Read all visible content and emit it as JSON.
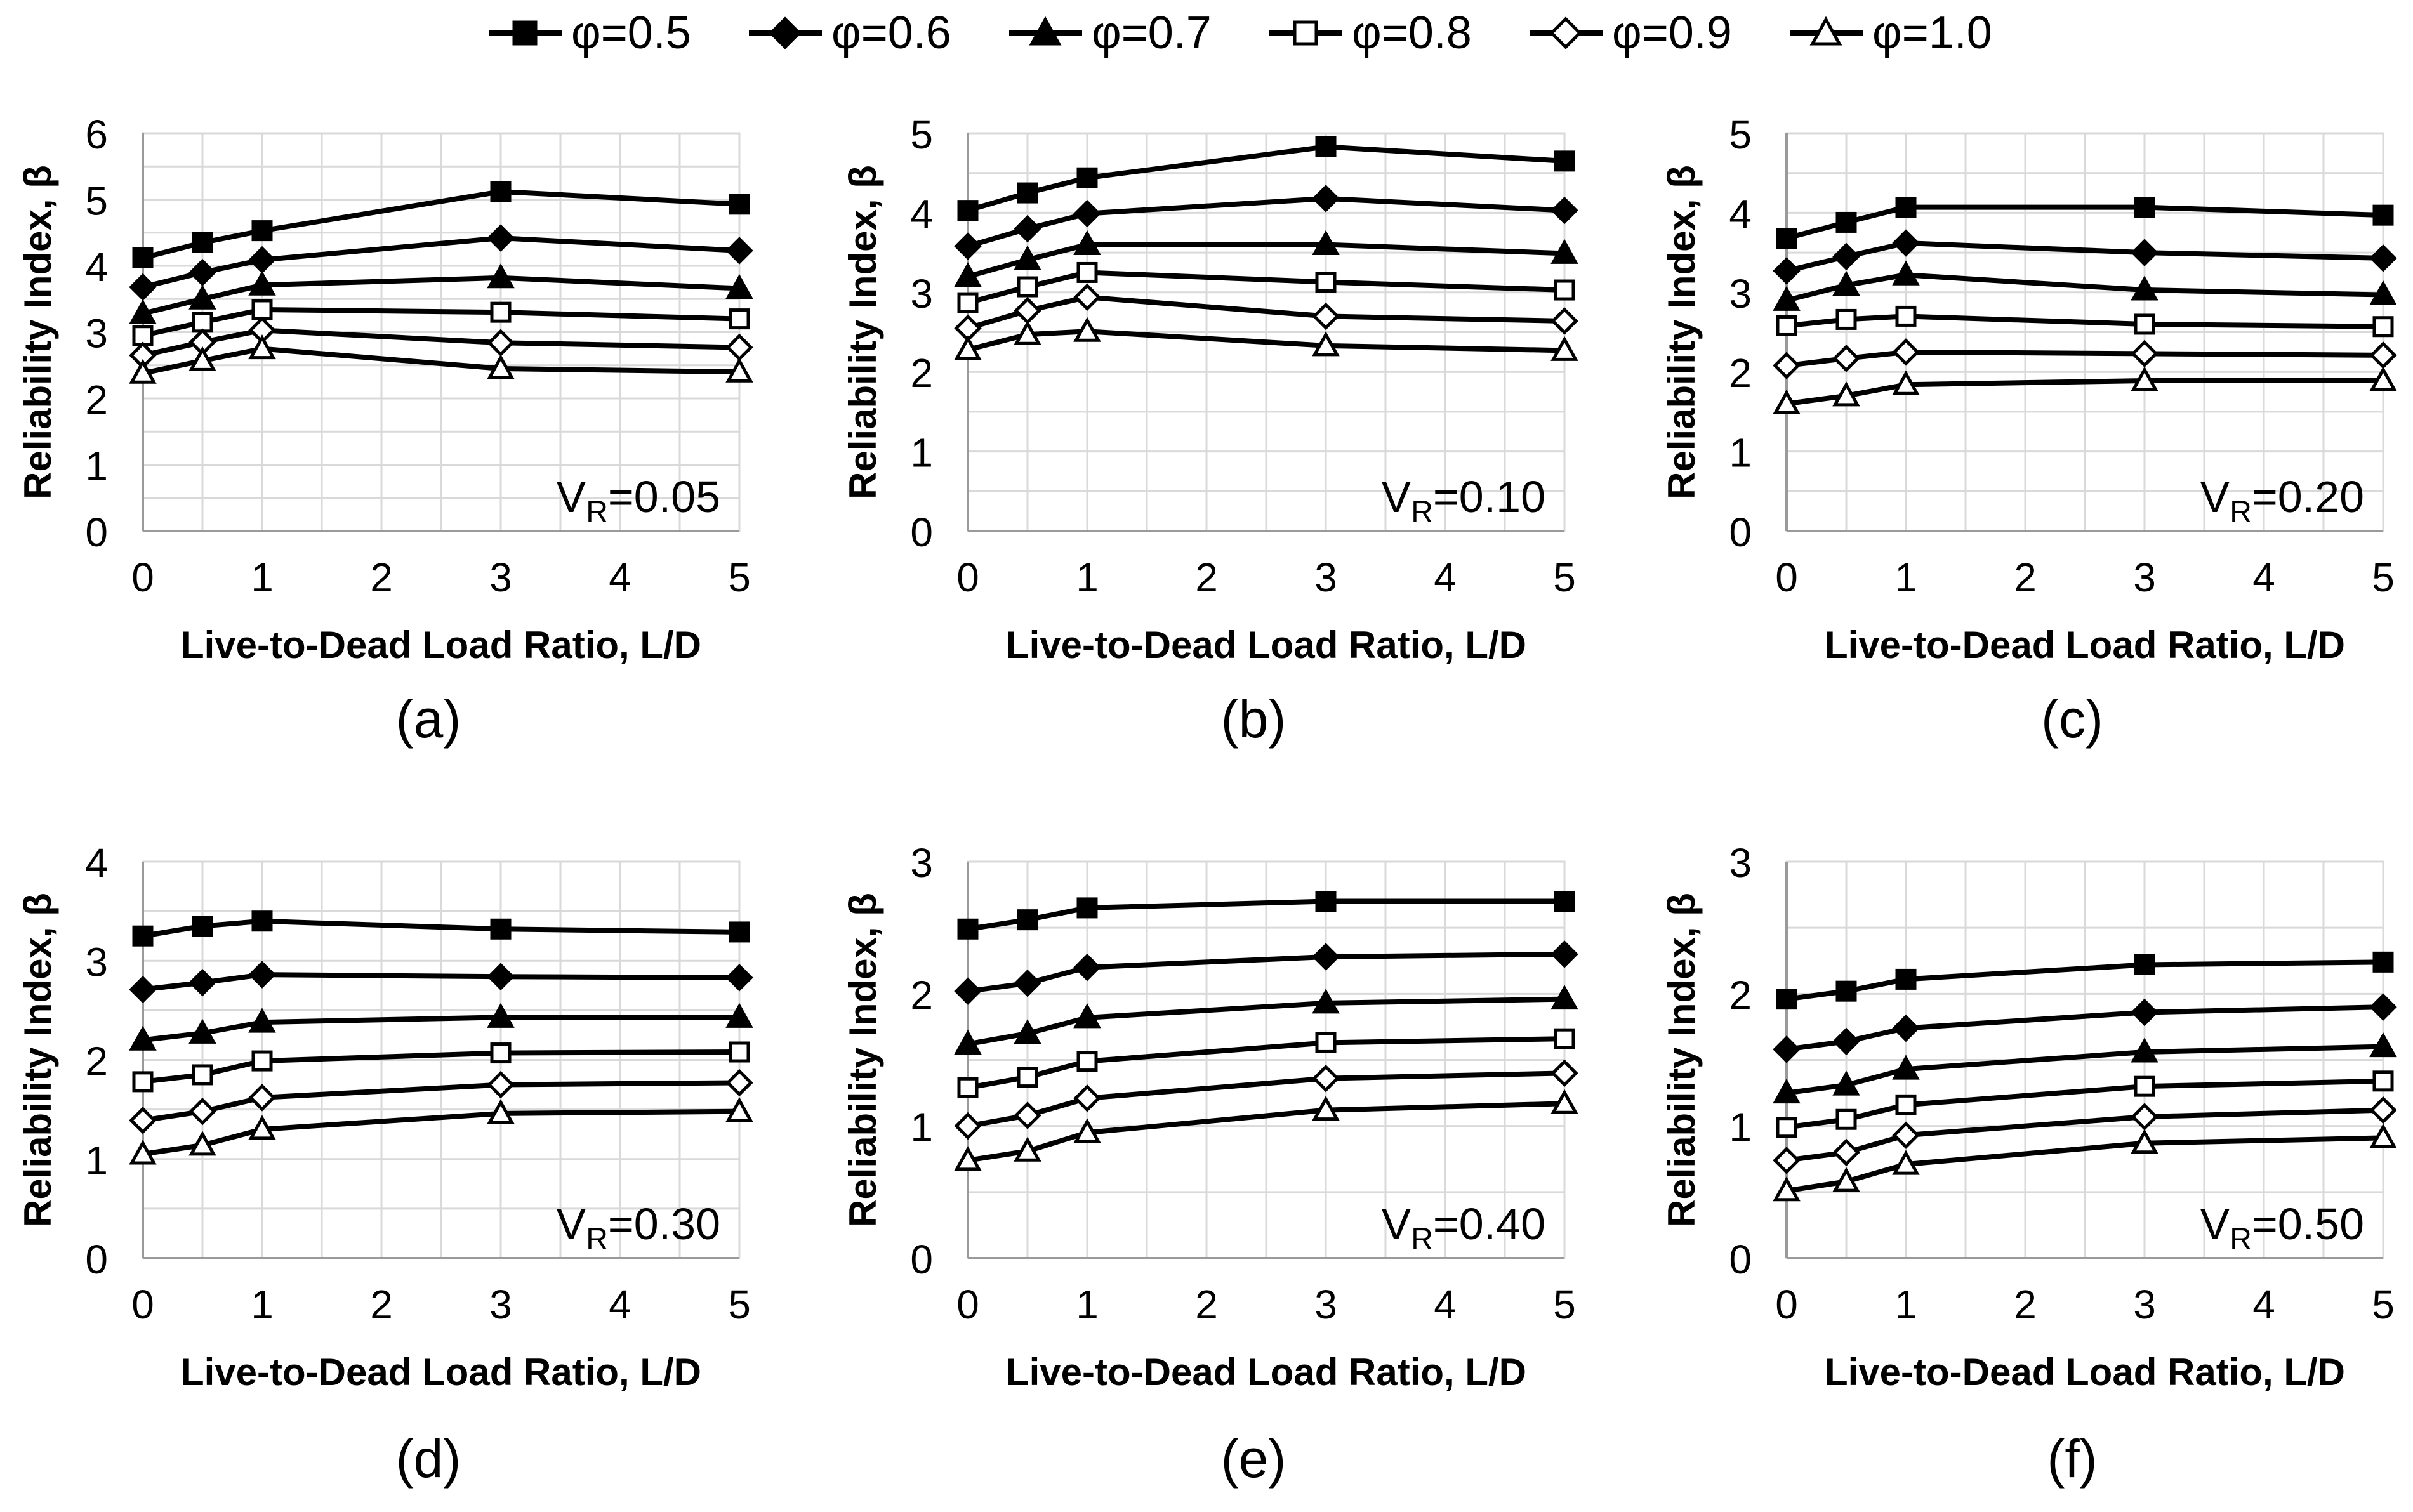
{
  "figure": {
    "legend": [
      {
        "symbol": "φ",
        "label": "=0.5",
        "marker": "square",
        "fill": "filled"
      },
      {
        "symbol": "φ",
        "label": "=0.6",
        "marker": "diamond",
        "fill": "filled"
      },
      {
        "symbol": "φ",
        "label": "=0.7",
        "marker": "triangle",
        "fill": "filled"
      },
      {
        "symbol": "φ",
        "label": "=0.8",
        "marker": "square",
        "fill": "open"
      },
      {
        "symbol": "φ",
        "label": "=0.9",
        "marker": "diamond",
        "fill": "open"
      },
      {
        "symbol": "φ",
        "label": "=1.0",
        "marker": "triangle",
        "fill": "open"
      }
    ],
    "colors": {
      "line": "#000000",
      "grid": "#d9d9d9",
      "open_fill": "#ffffff"
    }
  },
  "chart_data": [
    {
      "type": "line",
      "panel_label": "(a)",
      "annotation": {
        "main": "V",
        "sub": "R",
        "value": "=0.05"
      },
      "xlabel": "Live-to-Dead Load Ratio, L/D",
      "ylabel": "Reliability Index, β",
      "xlim": [
        0,
        5
      ],
      "ylim": [
        0,
        6
      ],
      "xticks": [
        "0",
        "1",
        "2",
        "3",
        "4",
        "5"
      ],
      "yticks": [
        "0",
        "1",
        "2",
        "3",
        "4",
        "5",
        "6"
      ],
      "x": [
        0,
        0.5,
        1,
        3,
        5
      ],
      "series": [
        {
          "name": "φ=0.5",
          "values": [
            4.12,
            4.35,
            4.53,
            5.12,
            4.93
          ]
        },
        {
          "name": "φ=0.6",
          "values": [
            3.68,
            3.9,
            4.09,
            4.42,
            4.23
          ]
        },
        {
          "name": "φ=0.7",
          "values": [
            3.28,
            3.5,
            3.71,
            3.82,
            3.66
          ]
        },
        {
          "name": "φ=0.8",
          "values": [
            2.95,
            3.15,
            3.34,
            3.3,
            3.2
          ]
        },
        {
          "name": "φ=0.9",
          "values": [
            2.65,
            2.85,
            3.03,
            2.84,
            2.77
          ]
        },
        {
          "name": "φ=1.0",
          "values": [
            2.38,
            2.57,
            2.75,
            2.45,
            2.4
          ]
        }
      ]
    },
    {
      "type": "line",
      "panel_label": "(b)",
      "annotation": {
        "main": "V",
        "sub": "R",
        "value": "=0.10"
      },
      "xlabel": "Live-to-Dead Load Ratio, L/D",
      "ylabel": "Reliability Index, β",
      "xlim": [
        0,
        5
      ],
      "ylim": [
        0,
        5
      ],
      "xticks": [
        "0",
        "1",
        "2",
        "3",
        "4",
        "5"
      ],
      "yticks": [
        "0",
        "1",
        "2",
        "3",
        "4",
        "5"
      ],
      "x": [
        0,
        0.5,
        1,
        3,
        5
      ],
      "series": [
        {
          "name": "φ=0.5",
          "values": [
            4.03,
            4.25,
            4.44,
            4.83,
            4.65
          ]
        },
        {
          "name": "φ=0.6",
          "values": [
            3.58,
            3.8,
            3.99,
            4.18,
            4.03
          ]
        },
        {
          "name": "φ=0.7",
          "values": [
            3.2,
            3.41,
            3.6,
            3.6,
            3.49
          ]
        },
        {
          "name": "φ=0.8",
          "values": [
            2.87,
            3.07,
            3.25,
            3.13,
            3.03
          ]
        },
        {
          "name": "φ=0.9",
          "values": [
            2.55,
            2.77,
            2.94,
            2.7,
            2.64
          ]
        },
        {
          "name": "φ=1.0",
          "values": [
            2.28,
            2.47,
            2.51,
            2.33,
            2.27
          ]
        }
      ]
    },
    {
      "type": "line",
      "panel_label": "(c)",
      "annotation": {
        "main": "V",
        "sub": "R",
        "value": "=0.20"
      },
      "xlabel": "Live-to-Dead Load Ratio, L/D",
      "ylabel": "Reliability Index, β",
      "xlim": [
        0,
        5
      ],
      "ylim": [
        0,
        5
      ],
      "xticks": [
        "0",
        "1",
        "2",
        "3",
        "4",
        "5"
      ],
      "yticks": [
        "0",
        "1",
        "2",
        "3",
        "4",
        "5"
      ],
      "x": [
        0,
        0.5,
        1,
        3,
        5
      ],
      "series": [
        {
          "name": "φ=0.5",
          "values": [
            3.68,
            3.88,
            4.07,
            4.07,
            3.97
          ]
        },
        {
          "name": "φ=0.6",
          "values": [
            3.27,
            3.45,
            3.62,
            3.5,
            3.43
          ]
        },
        {
          "name": "φ=0.7",
          "values": [
            2.9,
            3.09,
            3.22,
            3.03,
            2.97
          ]
        },
        {
          "name": "φ=0.8",
          "values": [
            2.58,
            2.66,
            2.7,
            2.6,
            2.57
          ]
        },
        {
          "name": "φ=0.9",
          "values": [
            2.08,
            2.17,
            2.25,
            2.23,
            2.21
          ]
        },
        {
          "name": "φ=1.0",
          "values": [
            1.6,
            1.7,
            1.84,
            1.89,
            1.89
          ]
        }
      ]
    },
    {
      "type": "line",
      "panel_label": "(d)",
      "annotation": {
        "main": "V",
        "sub": "R",
        "value": "=0.30"
      },
      "xlabel": "Live-to-Dead Load Ratio, L/D",
      "ylabel": "Reliability Index, β",
      "xlim": [
        0,
        5
      ],
      "ylim": [
        0,
        4
      ],
      "xticks": [
        "0",
        "1",
        "2",
        "3",
        "4",
        "5"
      ],
      "yticks": [
        "0",
        "1",
        "2",
        "3",
        "4"
      ],
      "x": [
        0,
        0.5,
        1,
        3,
        5
      ],
      "series": [
        {
          "name": "φ=0.5",
          "values": [
            3.25,
            3.35,
            3.4,
            3.32,
            3.29
          ]
        },
        {
          "name": "φ=0.6",
          "values": [
            2.71,
            2.78,
            2.86,
            2.84,
            2.83
          ]
        },
        {
          "name": "φ=0.7",
          "values": [
            2.2,
            2.27,
            2.38,
            2.43,
            2.43
          ]
        },
        {
          "name": "φ=0.8",
          "values": [
            1.78,
            1.85,
            1.99,
            2.07,
            2.08
          ]
        },
        {
          "name": "φ=0.9",
          "values": [
            1.39,
            1.48,
            1.62,
            1.75,
            1.77
          ]
        },
        {
          "name": "φ=1.0",
          "values": [
            1.05,
            1.14,
            1.3,
            1.46,
            1.48
          ]
        }
      ]
    },
    {
      "type": "line",
      "panel_label": "(e)",
      "annotation": {
        "main": "V",
        "sub": "R",
        "value": "=0.40"
      },
      "xlabel": "Live-to-Dead Load Ratio, L/D",
      "ylabel": "Reliability Index, β",
      "xlim": [
        0,
        5
      ],
      "ylim": [
        0,
        3
      ],
      "xticks": [
        "0",
        "1",
        "2",
        "3",
        "4",
        "5"
      ],
      "yticks": [
        "0",
        "1",
        "2",
        "3"
      ],
      "x": [
        0,
        0.5,
        1,
        3,
        5
      ],
      "series": [
        {
          "name": "φ=0.5",
          "values": [
            2.49,
            2.56,
            2.65,
            2.7,
            2.7
          ]
        },
        {
          "name": "φ=0.6",
          "values": [
            2.02,
            2.08,
            2.2,
            2.28,
            2.3
          ]
        },
        {
          "name": "φ=0.7",
          "values": [
            1.62,
            1.7,
            1.82,
            1.93,
            1.96
          ]
        },
        {
          "name": "φ=0.8",
          "values": [
            1.29,
            1.37,
            1.49,
            1.63,
            1.66
          ]
        },
        {
          "name": "φ=0.9",
          "values": [
            1.0,
            1.08,
            1.21,
            1.36,
            1.4
          ]
        },
        {
          "name": "φ=1.0",
          "values": [
            0.74,
            0.81,
            0.95,
            1.12,
            1.17
          ]
        }
      ]
    },
    {
      "type": "line",
      "panel_label": "(f)",
      "annotation": {
        "main": "V",
        "sub": "R",
        "value": "=0.50"
      },
      "xlabel": "Live-to-Dead Load Ratio, L/D",
      "ylabel": "Reliability Index, β",
      "xlim": [
        0,
        5
      ],
      "ylim": [
        0,
        3
      ],
      "xticks": [
        "0",
        "1",
        "2",
        "3",
        "4",
        "5"
      ],
      "yticks": [
        "0",
        "1",
        "2",
        "3"
      ],
      "x": [
        0,
        0.5,
        1,
        3,
        5
      ],
      "series": [
        {
          "name": "φ=0.5",
          "values": [
            1.96,
            2.02,
            2.11,
            2.22,
            2.24
          ]
        },
        {
          "name": "φ=0.6",
          "values": [
            1.58,
            1.64,
            1.74,
            1.86,
            1.9
          ]
        },
        {
          "name": "φ=0.7",
          "values": [
            1.25,
            1.31,
            1.43,
            1.56,
            1.6
          ]
        },
        {
          "name": "φ=0.8",
          "values": [
            0.99,
            1.05,
            1.16,
            1.3,
            1.34
          ]
        },
        {
          "name": "φ=0.9",
          "values": [
            0.74,
            0.8,
            0.93,
            1.07,
            1.12
          ]
        },
        {
          "name": "φ=1.0",
          "values": [
            0.51,
            0.58,
            0.71,
            0.87,
            0.91
          ]
        }
      ]
    }
  ]
}
